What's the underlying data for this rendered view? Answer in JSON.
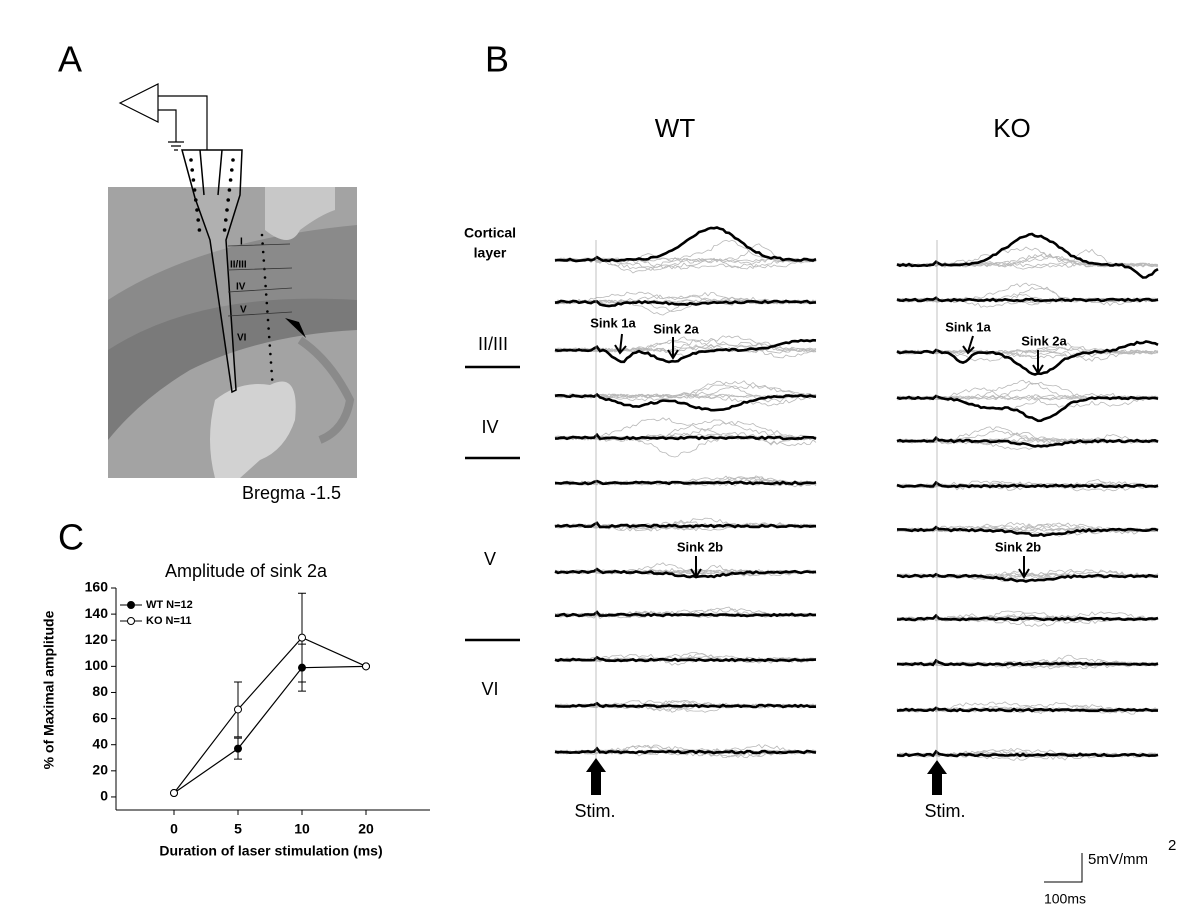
{
  "panel_a": {
    "label": "A",
    "layers": [
      "I",
      "II/III",
      "IV",
      "V",
      "VI"
    ],
    "caption": "Bregma -1.5"
  },
  "panel_b": {
    "label": "B",
    "cortical_layer": [
      "Cortical",
      "layer"
    ],
    "layers": [
      "II/III",
      "IV",
      "V",
      "VI"
    ],
    "groups": [
      {
        "name": "WT",
        "sinks": [
          "Sink 1a",
          "Sink 2a",
          "Sink 2b"
        ],
        "stim": "Stim."
      },
      {
        "name": "KO",
        "sinks": [
          "Sink 1a",
          "Sink 2a",
          "Sink 2b"
        ],
        "stim": "Stim."
      }
    ],
    "scale": {
      "amplitude": "5mV/mm",
      "amplitude_exponent": "2",
      "time": "100ms"
    }
  },
  "panel_c": {
    "label": "C"
  },
  "chart_data": {
    "type": "line",
    "title": "Amplitude of sink 2a",
    "x_label": "Duration of laser stimulation (ms)",
    "y_label": "% of Maximal amplitude",
    "categories": [
      "0",
      "5",
      "10",
      "20"
    ],
    "series": [
      {
        "name": "WT N=12",
        "color": "#000000",
        "marker": "filled",
        "values": [
          3,
          37,
          99,
          100
        ],
        "errors": [
          0,
          8,
          18,
          0
        ]
      },
      {
        "name": "KO N=11",
        "color": "#000000",
        "marker": "open",
        "values": [
          3,
          67,
          122,
          100
        ],
        "errors": [
          0,
          21,
          34,
          0
        ]
      }
    ],
    "ylim": [
      -10,
      160
    ],
    "yticks": [
      0,
      20,
      40,
      60,
      80,
      100,
      120,
      140,
      160
    ],
    "legend": "top-left"
  }
}
